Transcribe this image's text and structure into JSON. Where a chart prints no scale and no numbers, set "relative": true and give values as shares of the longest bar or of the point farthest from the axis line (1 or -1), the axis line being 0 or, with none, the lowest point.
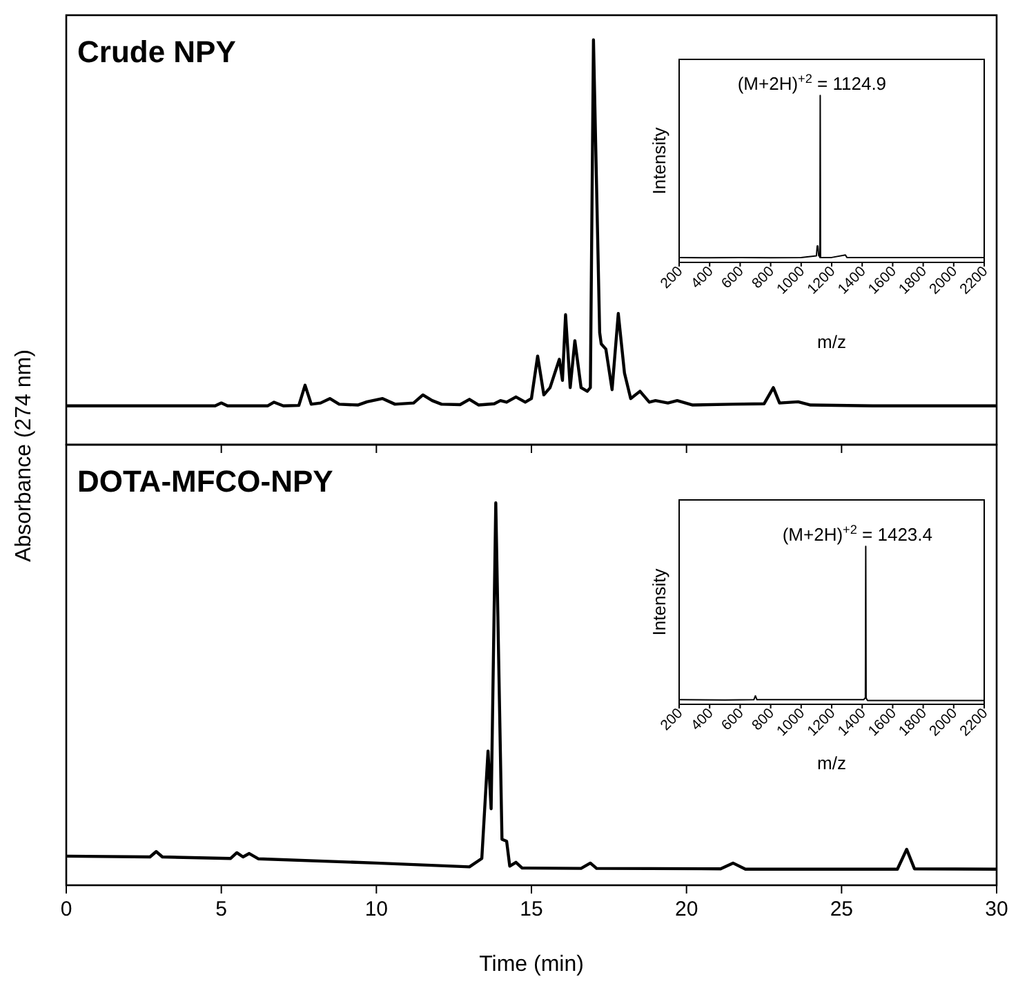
{
  "chart_data": [
    {
      "type": "line",
      "title": "Crude NPY",
      "ylabel": "Absorbance (274 nm)",
      "relative": true,
      "xlim": [
        0,
        30
      ],
      "xticks": [
        0,
        5,
        10,
        15,
        20,
        25,
        30
      ],
      "tick_labels": false,
      "color": "#000000",
      "x": [
        0,
        4.8,
        5.0,
        5.2,
        6.5,
        6.7,
        7.0,
        7.5,
        7.7,
        7.9,
        8.2,
        8.5,
        8.8,
        9.4,
        9.7,
        10.2,
        10.6,
        11.2,
        11.5,
        11.8,
        12.1,
        12.7,
        13.0,
        13.3,
        13.8,
        14.0,
        14.2,
        14.5,
        14.8,
        15.0,
        15.2,
        15.4,
        15.6,
        15.9,
        16.0,
        16.1,
        16.25,
        16.4,
        16.6,
        16.8,
        16.9,
        17.0,
        17.2,
        17.25,
        17.4,
        17.6,
        17.8,
        18.0,
        18.2,
        18.5,
        18.8,
        19.0,
        19.4,
        19.7,
        20.2,
        21.5,
        22.5,
        22.8,
        23.0,
        23.6,
        24.0,
        26.0,
        30
      ],
      "values": [
        0.096,
        0.096,
        0.103,
        0.096,
        0.096,
        0.105,
        0.096,
        0.097,
        0.147,
        0.1,
        0.103,
        0.114,
        0.1,
        0.098,
        0.106,
        0.114,
        0.1,
        0.103,
        0.123,
        0.109,
        0.1,
        0.099,
        0.112,
        0.098,
        0.101,
        0.109,
        0.105,
        0.118,
        0.105,
        0.114,
        0.219,
        0.123,
        0.141,
        0.211,
        0.159,
        0.321,
        0.141,
        0.257,
        0.141,
        0.132,
        0.141,
        1.0,
        0.277,
        0.249,
        0.236,
        0.136,
        0.324,
        0.177,
        0.114,
        0.132,
        0.105,
        0.109,
        0.103,
        0.109,
        0.098,
        0.1,
        0.101,
        0.141,
        0.103,
        0.106,
        0.098,
        0.096,
        0.096
      ]
    },
    {
      "type": "line",
      "xlabel": "m/z",
      "ylabel": "Intensity",
      "relative": true,
      "xlim": [
        200,
        2200
      ],
      "xticks": [
        200,
        400,
        600,
        800,
        1000,
        1200,
        1400,
        1600,
        1800,
        2000,
        2200
      ],
      "tick_labels": "x",
      "color": "#000000",
      "annotations": [
        {
          "text": "(M+2H)$^{+2}$ = 1124.9",
          "x": 1124.9,
          "y": 1
        }
      ],
      "x": [
        200,
        400,
        600,
        800,
        1000,
        1100,
        1105,
        1110,
        1115,
        1120,
        1123,
        1124.9,
        1127,
        1200,
        1290,
        1300,
        1600,
        2000,
        2200
      ],
      "values": [
        0.01,
        0.008,
        0.01,
        0.008,
        0.01,
        0.02,
        0.08,
        0.08,
        0.02,
        0.02,
        0.01,
        1,
        0.01,
        0.01,
        0.025,
        0.01,
        0.01,
        0.01,
        0.01
      ]
    },
    {
      "type": "line",
      "title": "DOTA-MFCO-NPY",
      "xlabel": "Time (min)",
      "relative": true,
      "xlim": [
        0,
        30
      ],
      "xticks": [
        0,
        5,
        10,
        15,
        20,
        25,
        30
      ],
      "color": "#000000",
      "x": [
        0,
        2.7,
        2.9,
        3.1,
        5.3,
        5.5,
        5.7,
        5.9,
        6.2,
        10,
        13.0,
        13.4,
        13.6,
        13.7,
        13.85,
        14.05,
        14.2,
        14.3,
        14.5,
        14.7,
        16.6,
        16.9,
        17.1,
        21.1,
        21.5,
        21.9,
        26.8,
        27.1,
        27.35,
        30
      ],
      "values": [
        0.076,
        0.074,
        0.088,
        0.074,
        0.07,
        0.085,
        0.074,
        0.083,
        0.069,
        0.058,
        0.048,
        0.07,
        0.351,
        0.2,
        1.0,
        0.12,
        0.115,
        0.05,
        0.06,
        0.045,
        0.044,
        0.058,
        0.044,
        0.043,
        0.058,
        0.042,
        0.042,
        0.094,
        0.043,
        0.042
      ]
    },
    {
      "type": "line",
      "xlabel": "m/z",
      "ylabel": "Intensity",
      "relative": true,
      "xlim": [
        200,
        2200
      ],
      "xticks": [
        200,
        400,
        600,
        800,
        1000,
        1200,
        1400,
        1600,
        1800,
        2000,
        2200
      ],
      "tick_labels": "x",
      "color": "#000000",
      "annotations": [
        {
          "text": "(M+2H)$^{+2}$ = 1423.4",
          "x": 1423.4,
          "y": 1
        }
      ],
      "x": [
        200,
        500,
        690,
        700,
        710,
        1000,
        1410,
        1418,
        1421,
        1423.4,
        1426,
        1435,
        1800,
        2200
      ],
      "values": [
        0.01,
        0.008,
        0.01,
        0.035,
        0.01,
        0.01,
        0.01,
        0.02,
        0.02,
        1,
        0.02,
        0.005,
        0.005,
        0.005
      ]
    }
  ]
}
